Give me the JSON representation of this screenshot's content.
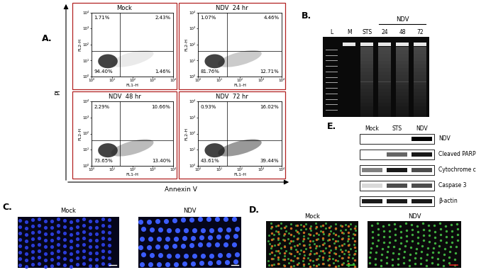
{
  "chart_data": [
    {
      "type": "scatter",
      "title": "Mock",
      "x_label": "FL1-H",
      "y_label": "FL2-H",
      "log": true,
      "xlim": [
        1,
        10000
      ],
      "ylim": [
        1,
        10000
      ],
      "xticks": [
        {
          "value": 1,
          "label": "10⁰"
        },
        {
          "value": 10,
          "label": "10¹"
        },
        {
          "value": 100,
          "label": "10²"
        },
        {
          "value": 1000,
          "label": "10³"
        },
        {
          "value": 10000,
          "label": "10⁴"
        }
      ],
      "yticks": [
        {
          "value": 1,
          "label": "10⁰"
        },
        {
          "value": 10,
          "label": "10¹"
        },
        {
          "value": 100,
          "label": "10²"
        },
        {
          "value": 1000,
          "label": "10³"
        },
        {
          "value": 10000,
          "label": "10⁴"
        }
      ],
      "gates": {
        "x": 25,
        "y": 40
      },
      "quadrant_labels": {
        "upper_left": "1.71%",
        "upper_right": "2.43%",
        "lower_left": "94.40%",
        "lower_right": "1.46%"
      }
    },
    {
      "type": "scatter",
      "title": "NDV  24 hr",
      "x_label": "FL1-H",
      "y_label": "FL2-H",
      "log": true,
      "xlim": [
        1,
        10000
      ],
      "ylim": [
        1,
        10000
      ],
      "xticks": [
        {
          "value": 1,
          "label": "10⁰"
        },
        {
          "value": 10,
          "label": "10¹"
        },
        {
          "value": 100,
          "label": "10²"
        },
        {
          "value": 1000,
          "label": "10³"
        },
        {
          "value": 10000,
          "label": "10⁴"
        }
      ],
      "yticks": [
        {
          "value": 1,
          "label": "10⁰"
        },
        {
          "value": 10,
          "label": "10¹"
        },
        {
          "value": 100,
          "label": "10²"
        },
        {
          "value": 1000,
          "label": "10³"
        },
        {
          "value": 10000,
          "label": "10⁴"
        }
      ],
      "gates": {
        "x": 25,
        "y": 40
      },
      "quadrant_labels": {
        "upper_left": "1.07%",
        "upper_right": "4.46%",
        "lower_left": "81.76%",
        "lower_right": "12.71%"
      }
    },
    {
      "type": "scatter",
      "title": "NDV  48 hr",
      "x_label": "FL1-H",
      "y_label": "FL2-H",
      "log": true,
      "xlim": [
        1,
        10000
      ],
      "ylim": [
        1,
        10000
      ],
      "xticks": [
        {
          "value": 1,
          "label": "10⁰"
        },
        {
          "value": 10,
          "label": "10¹"
        },
        {
          "value": 100,
          "label": "10²"
        },
        {
          "value": 1000,
          "label": "10³"
        },
        {
          "value": 10000,
          "label": "10⁴"
        }
      ],
      "yticks": [
        {
          "value": 1,
          "label": "10⁰"
        },
        {
          "value": 10,
          "label": "10¹"
        },
        {
          "value": 100,
          "label": "10²"
        },
        {
          "value": 1000,
          "label": "10³"
        },
        {
          "value": 10000,
          "label": "10⁴"
        }
      ],
      "gates": {
        "x": 25,
        "y": 40
      },
      "quadrant_labels": {
        "upper_left": "2.29%",
        "upper_right": "10.66%",
        "lower_left": "73.65%",
        "lower_right": "13.40%"
      }
    },
    {
      "type": "scatter",
      "title": "NDV  72 hr",
      "x_label": "FL1-H",
      "y_label": "FL2-H",
      "log": true,
      "xlim": [
        1,
        10000
      ],
      "ylim": [
        1,
        10000
      ],
      "xticks": [
        {
          "value": 1,
          "label": "10⁰"
        },
        {
          "value": 10,
          "label": "10¹"
        },
        {
          "value": 100,
          "label": "10²"
        },
        {
          "value": 1000,
          "label": "10³"
        },
        {
          "value": 10000,
          "label": "10⁴"
        }
      ],
      "yticks": [
        {
          "value": 1,
          "label": "10⁰"
        },
        {
          "value": 10,
          "label": "10¹"
        },
        {
          "value": 100,
          "label": "10²"
        },
        {
          "value": 1000,
          "label": "10³"
        },
        {
          "value": 10000,
          "label": "10⁴"
        }
      ],
      "gates": {
        "x": 25,
        "y": 40
      },
      "quadrant_labels": {
        "upper_left": "0.93%",
        "upper_right": "16.02%",
        "lower_left": "43.61%",
        "lower_right": "39.44%"
      }
    }
  ],
  "panels": {
    "A": {
      "label": "A.",
      "y_axis_title": "PI",
      "x_axis_title": "Annexin V"
    },
    "B": {
      "label": "B.",
      "lanes": [
        "L",
        "M",
        "STS",
        "24",
        "48",
        "72"
      ],
      "group": {
        "label": "NDV",
        "lanes": [
          "24",
          "48",
          "72"
        ]
      }
    },
    "C": {
      "label": "C.",
      "images": [
        "Mock",
        "NDV"
      ]
    },
    "D": {
      "label": "D.",
      "images": [
        "Mock",
        "NDV"
      ]
    },
    "E": {
      "label": "E.",
      "columns": [
        "Mock",
        "STS",
        "NDV"
      ],
      "rows": [
        {
          "label": "NDV",
          "bands": [
            0,
            0,
            1
          ]
        },
        {
          "label": "Cleaved PARP",
          "bands": [
            0,
            0.6,
            0.9
          ]
        },
        {
          "label": "Cytochrome c",
          "bands": [
            0.5,
            0.9,
            0.7
          ]
        },
        {
          "label": "Caspase 3",
          "bands": [
            0.15,
            0.7,
            0.7
          ]
        },
        {
          "label": "β-actin",
          "bands": [
            0.9,
            0.9,
            0.9
          ]
        }
      ]
    }
  }
}
